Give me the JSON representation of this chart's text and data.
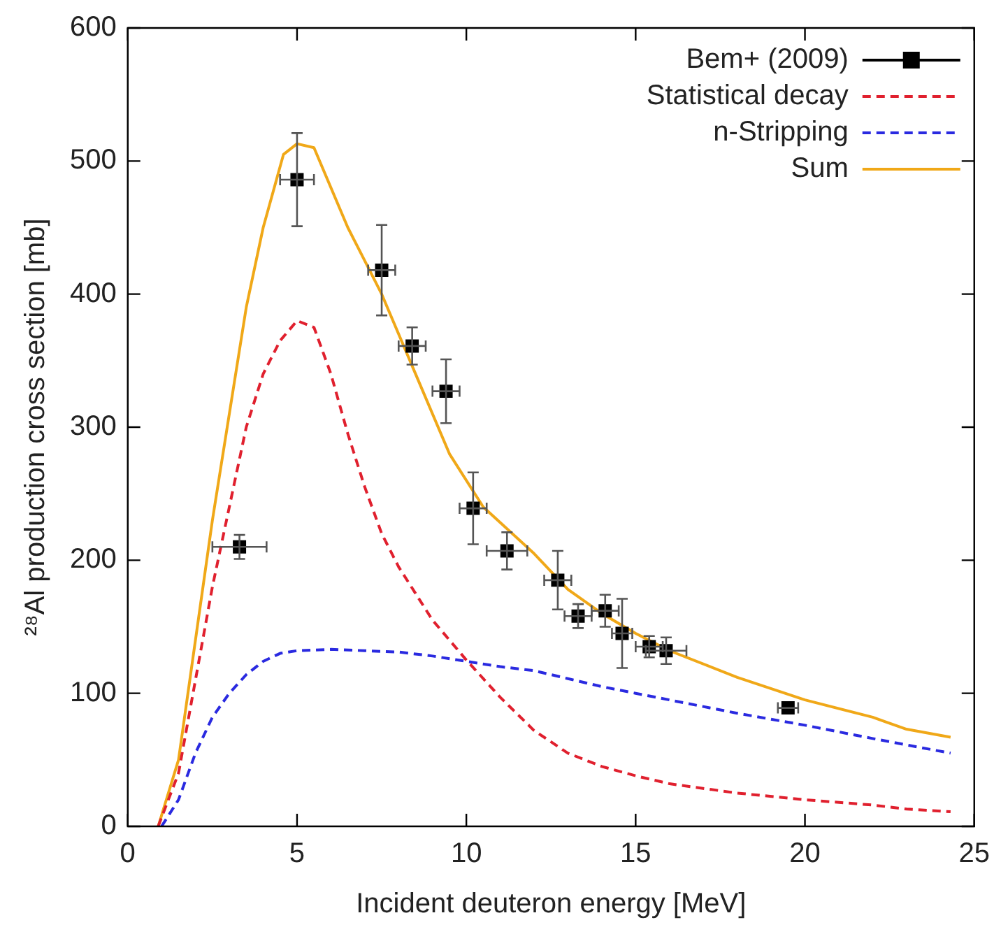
{
  "chart_data": {
    "type": "line",
    "xlabel": "Incident deuteron energy [MeV]",
    "ylabel": "²⁸Al production cross section [mb]",
    "xlim": [
      0,
      25
    ],
    "xticks": [
      0,
      5,
      10,
      15,
      20,
      25
    ],
    "ylim": [
      0,
      600
    ],
    "yticks": [
      0,
      100,
      200,
      300,
      400,
      500,
      600
    ],
    "grid": false,
    "legend": "top right",
    "series": [
      {
        "name": "Bem+ (2009)",
        "type": "scatter",
        "marker": "square",
        "color": "#000000",
        "x": [
          3.3,
          5.0,
          7.5,
          8.4,
          9.4,
          10.2,
          11.2,
          12.7,
          13.3,
          14.1,
          14.6,
          15.4,
          15.9,
          19.5
        ],
        "values": [
          210,
          486,
          418,
          361,
          327,
          239,
          207,
          185,
          158,
          162,
          145,
          135,
          132,
          89
        ],
        "errors": [
          9,
          35,
          34,
          14,
          24,
          27,
          14,
          22,
          9,
          12,
          26,
          8,
          10,
          null
        ],
        "xerrors": [
          0.8,
          0.5,
          0.4,
          0.4,
          0.4,
          0.4,
          0.6,
          0.4,
          0.4,
          0.4,
          0.3,
          0.4,
          0.6,
          0.3
        ]
      },
      {
        "name": "Statistical decay",
        "type": "line",
        "line_style": "dashed",
        "marker": "none",
        "color": "#e0202e",
        "x": [
          0.9,
          1.5,
          2.5,
          3.5,
          4,
          4.5,
          5,
          5.5,
          6,
          6.5,
          7,
          7.5,
          8,
          9,
          10,
          11,
          12,
          13,
          14,
          15,
          16,
          18,
          20,
          22,
          23,
          24.3
        ],
        "values": [
          0,
          40,
          180,
          300,
          340,
          365,
          380,
          375,
          340,
          295,
          255,
          220,
          195,
          155,
          125,
          97,
          72,
          55,
          45,
          38,
          32,
          25,
          20,
          16,
          13,
          11
        ]
      },
      {
        "name": "n-Stripping",
        "type": "line",
        "line_style": "dashed",
        "marker": "none",
        "color": "#2a2ae0",
        "x": [
          1,
          1.5,
          2,
          2.5,
          3,
          3.5,
          4,
          4.5,
          5,
          6,
          7,
          8,
          9,
          10,
          11,
          12,
          13,
          14,
          15,
          16,
          18,
          20,
          22,
          24.3
        ],
        "values": [
          0,
          20,
          55,
          82,
          100,
          114,
          124,
          130,
          132,
          133,
          132,
          131,
          128,
          124,
          120,
          117,
          111,
          105,
          100,
          95,
          85,
          76,
          66,
          55
        ]
      },
      {
        "name": "Sum",
        "type": "line",
        "line_style": "solid",
        "marker": "none",
        "color": "#f0a818",
        "x": [
          0.9,
          1.5,
          2.5,
          3.5,
          4,
          4.6,
          5,
          5.5,
          6.5,
          7.5,
          8.5,
          9.5,
          10.5,
          12,
          13,
          14,
          15,
          16,
          18,
          20,
          22,
          23,
          24.3
        ],
        "values": [
          0,
          50,
          230,
          390,
          450,
          505,
          513,
          510,
          450,
          400,
          340,
          280,
          240,
          205,
          178,
          160,
          145,
          132,
          112,
          95,
          82,
          73,
          67
        ]
      }
    ]
  }
}
